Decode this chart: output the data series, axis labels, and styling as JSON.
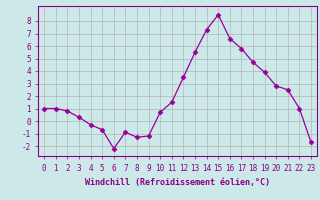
{
  "xlabel": "Windchill (Refroidissement éolien,°C)",
  "x": [
    0,
    1,
    2,
    3,
    4,
    5,
    6,
    7,
    8,
    9,
    10,
    11,
    12,
    13,
    14,
    15,
    16,
    17,
    18,
    19,
    20,
    21,
    22,
    23
  ],
  "y": [
    1,
    1,
    0.8,
    0.3,
    -0.3,
    -0.7,
    -2.2,
    -0.9,
    -1.3,
    -1.2,
    0.7,
    1.5,
    3.5,
    5.5,
    7.3,
    8.5,
    6.6,
    5.8,
    4.7,
    3.9,
    2.8,
    2.5,
    1.0,
    -1.7
  ],
  "line_color": "#990099",
  "marker": "D",
  "marker_size": 2.5,
  "bg_color": "#cce8e8",
  "grid_color": "#aaaaaa",
  "ylim": [
    -2.8,
    9.2
  ],
  "xlim": [
    -0.5,
    23.5
  ],
  "yticks": [
    -2,
    -1,
    0,
    1,
    2,
    3,
    4,
    5,
    6,
    7,
    8
  ],
  "xticks": [
    0,
    1,
    2,
    3,
    4,
    5,
    6,
    7,
    8,
    9,
    10,
    11,
    12,
    13,
    14,
    15,
    16,
    17,
    18,
    19,
    20,
    21,
    22,
    23
  ],
  "tick_color": "#880088",
  "label_color": "#880088",
  "axis_color": "#880088",
  "tick_fontsize": 5.5,
  "xlabel_fontsize": 6.0
}
